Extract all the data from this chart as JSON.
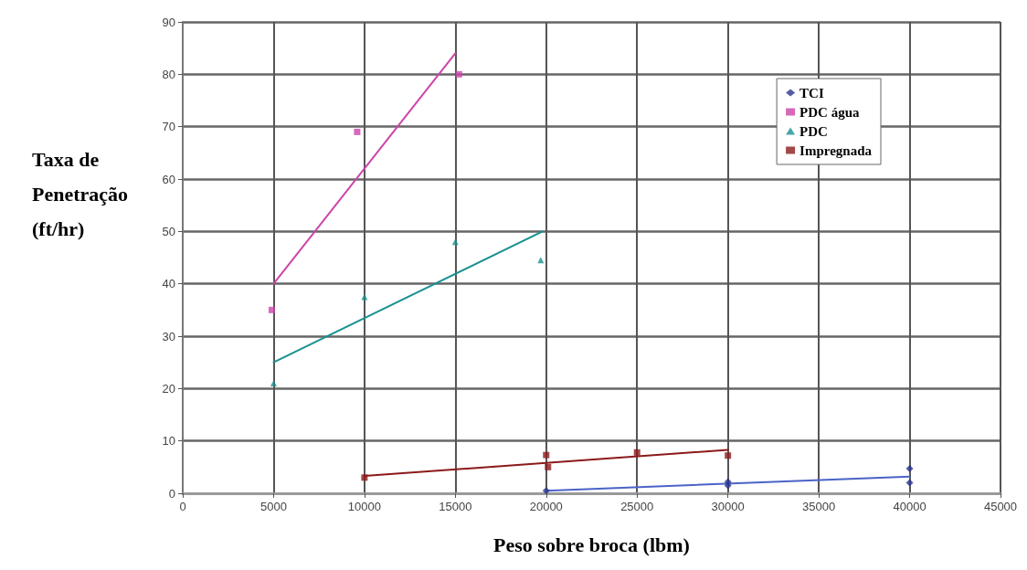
{
  "chart_data": {
    "type": "scatter",
    "xlabel": "Peso sobre broca (lbm)",
    "ylabel": "Taxa de Penetração (ft/hr)",
    "xlim": [
      0,
      45000
    ],
    "xticks": [
      0,
      5000,
      10000,
      15000,
      20000,
      25000,
      30000,
      35000,
      40000,
      45000
    ],
    "ylim": [
      0,
      90
    ],
    "yticks": [
      0,
      10,
      20,
      30,
      40,
      50,
      60,
      70,
      80,
      90
    ],
    "grid": true,
    "legend": "top right",
    "series": [
      {
        "name": "TCI",
        "marker": "diamond",
        "color": "#28338f",
        "x": [
          20000,
          30000,
          30000,
          40000,
          40000
        ],
        "values": [
          0.5,
          1.5,
          2.2,
          4.7,
          2
        ]
      },
      {
        "name": "PDC água",
        "marker": "square",
        "color": "#cc44aa",
        "x": [
          4900,
          9600,
          15200
        ],
        "values": [
          35,
          69,
          80
        ]
      },
      {
        "name": "PDC",
        "marker": "triangle",
        "color": "#1a9090",
        "x": [
          5000,
          10000,
          15000,
          19700
        ],
        "values": [
          21,
          37.5,
          48,
          44.5
        ]
      },
      {
        "name": "Impregnada",
        "marker": "square",
        "color": "#8b1a1a",
        "x": [
          10000,
          20000,
          20100,
          25000,
          30000
        ],
        "values": [
          3,
          7.3,
          5,
          7.8,
          7.2
        ]
      },
      {
        "type": "line",
        "marker": "none",
        "color": "#4a63c8",
        "x": [
          20000,
          40000
        ],
        "values": [
          0.5,
          3.2
        ]
      },
      {
        "type": "line",
        "marker": "none",
        "color": "#cc44aa",
        "x": [
          5000,
          15000
        ],
        "values": [
          40,
          84
        ]
      },
      {
        "type": "line",
        "marker": "none",
        "color": "#1a9090",
        "x": [
          5000,
          19800
        ],
        "values": [
          25,
          50
        ]
      },
      {
        "type": "line",
        "marker": "none",
        "color": "#8b1a1a",
        "x": [
          10000,
          30000
        ],
        "values": [
          3.3,
          8.3
        ]
      }
    ]
  }
}
